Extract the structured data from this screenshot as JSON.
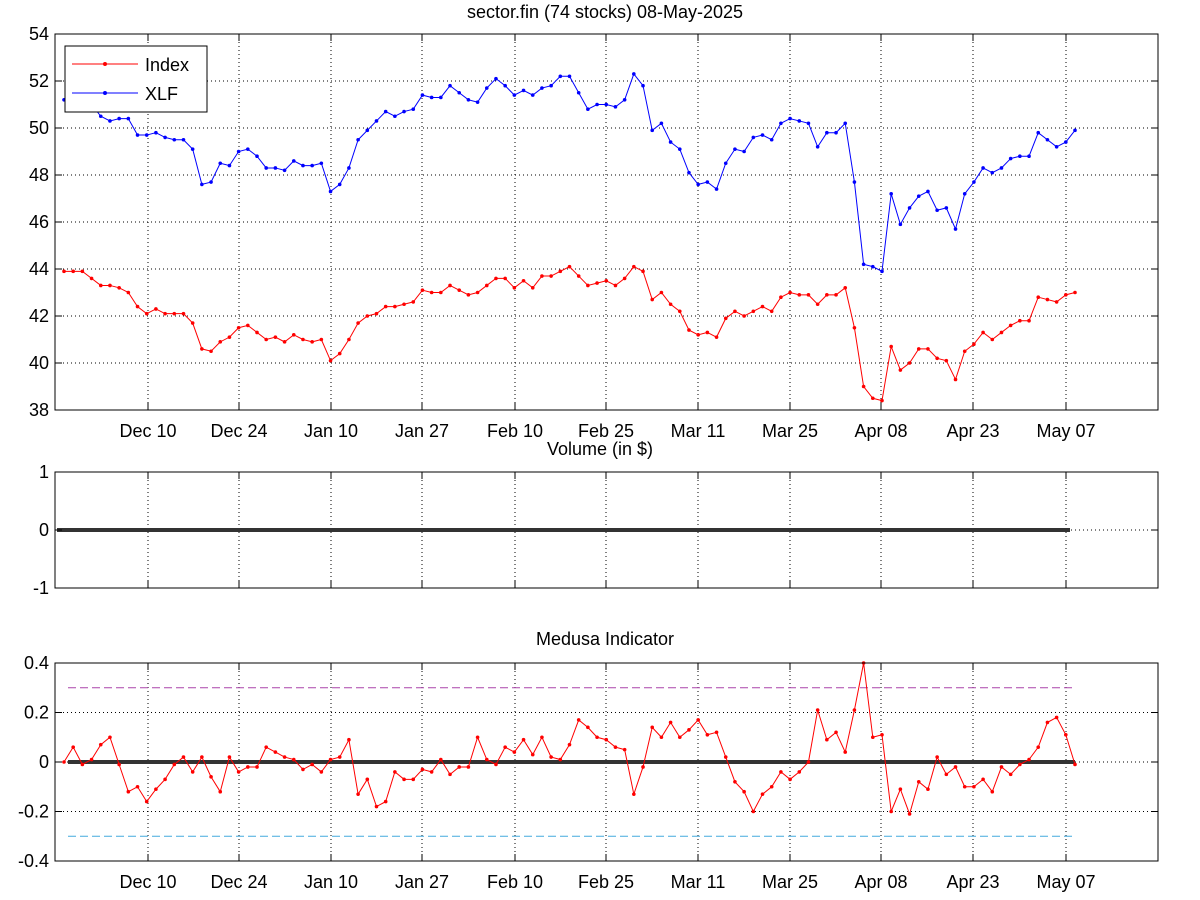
{
  "chart_data": [
    {
      "type": "line",
      "title": "sector.fin (74 stocks)   08-May-2025",
      "xlabel": "",
      "ylabel": "",
      "ylim": [
        38,
        54
      ],
      "yticks": [
        38,
        40,
        42,
        44,
        46,
        48,
        50,
        52,
        54
      ],
      "xticks": [
        "Dec 10",
        "Dec 24",
        "Jan 10",
        "Jan 27",
        "Feb 10",
        "Feb 25",
        "Mar 11",
        "Mar 25",
        "Apr 08",
        "Apr 23",
        "May 07"
      ],
      "grid": true,
      "legend": "top-left",
      "series": [
        {
          "name": "Index",
          "color": "#ff0000",
          "values": [
            43.9,
            43.9,
            43.9,
            43.6,
            43.3,
            43.3,
            43.2,
            43.0,
            42.4,
            42.1,
            42.3,
            42.1,
            42.1,
            42.1,
            41.7,
            40.6,
            40.5,
            40.9,
            41.1,
            41.5,
            41.6,
            41.3,
            41.0,
            41.1,
            40.9,
            41.2,
            41.0,
            40.9,
            41.0,
            40.1,
            40.4,
            41.0,
            41.7,
            42.0,
            42.1,
            42.4,
            42.4,
            42.5,
            42.6,
            43.1,
            43.0,
            43.0,
            43.3,
            43.1,
            42.9,
            43.0,
            43.3,
            43.6,
            43.6,
            43.2,
            43.5,
            43.2,
            43.7,
            43.7,
            43.9,
            44.1,
            43.7,
            43.3,
            43.4,
            43.5,
            43.3,
            43.6,
            44.1,
            43.9,
            42.7,
            43.0,
            42.5,
            42.2,
            41.4,
            41.2,
            41.3,
            41.1,
            41.9,
            42.2,
            42.0,
            42.2,
            42.4,
            42.2,
            42.8,
            43.0,
            42.9,
            42.9,
            42.5,
            42.9,
            42.9,
            43.2,
            41.5,
            39.0,
            38.5,
            38.4,
            40.7,
            39.7,
            40.0,
            40.6,
            40.6,
            40.2,
            40.1,
            39.3,
            40.5,
            40.8,
            41.3,
            41.0,
            41.3,
            41.6,
            41.8,
            41.8,
            42.8,
            42.7,
            42.6,
            42.9,
            43.0
          ]
        },
        {
          "name": "XLF",
          "color": "#0000ff",
          "values": [
            51.2,
            51.6,
            51.4,
            51.0,
            50.5,
            50.3,
            50.4,
            50.4,
            49.7,
            49.7,
            49.8,
            49.6,
            49.5,
            49.5,
            49.1,
            47.6,
            47.7,
            48.5,
            48.4,
            49.0,
            49.1,
            48.8,
            48.3,
            48.3,
            48.2,
            48.6,
            48.4,
            48.4,
            48.5,
            47.3,
            47.6,
            48.3,
            49.5,
            49.9,
            50.3,
            50.7,
            50.5,
            50.7,
            50.8,
            51.4,
            51.3,
            51.3,
            51.8,
            51.5,
            51.2,
            51.1,
            51.7,
            52.1,
            51.8,
            51.4,
            51.6,
            51.4,
            51.7,
            51.8,
            52.2,
            52.2,
            51.5,
            50.8,
            51.0,
            51.0,
            50.9,
            51.2,
            52.3,
            51.8,
            49.9,
            50.2,
            49.4,
            49.1,
            48.1,
            47.6,
            47.7,
            47.4,
            48.5,
            49.1,
            49.0,
            49.6,
            49.7,
            49.5,
            50.2,
            50.4,
            50.3,
            50.2,
            49.2,
            49.8,
            49.8,
            50.2,
            47.7,
            44.2,
            44.1,
            43.9,
            47.2,
            45.9,
            46.6,
            47.1,
            47.3,
            46.5,
            46.6,
            45.7,
            47.2,
            47.7,
            48.3,
            48.1,
            48.3,
            48.7,
            48.8,
            48.8,
            49.8,
            49.5,
            49.2,
            49.4,
            49.9
          ]
        }
      ]
    },
    {
      "type": "line",
      "title": "Volume (in $)",
      "ylim": [
        -1,
        1
      ],
      "yticks": [
        -1,
        0,
        1
      ],
      "grid": true,
      "series": [
        {
          "color": "#333333",
          "values": [
            0,
            0
          ]
        }
      ]
    },
    {
      "type": "line",
      "title": "Medusa Indicator",
      "ylim": [
        -0.4,
        0.4
      ],
      "yticks": [
        -0.4,
        -0.2,
        0,
        0.2,
        0.4
      ],
      "xticks": [
        "Dec 10",
        "Dec 24",
        "Jan 10",
        "Jan 27",
        "Feb 10",
        "Feb 25",
        "Mar 11",
        "Mar 25",
        "Apr 08",
        "Apr 23",
        "May 07"
      ],
      "grid": true,
      "reference_lines": [
        {
          "value": 0.3,
          "color": "#aa44aa"
        },
        {
          "value": -0.3,
          "color": "#44aadd"
        },
        {
          "value": 0,
          "color": "#333333"
        }
      ],
      "series": [
        {
          "color": "#ff0000",
          "values": [
            0.0,
            0.06,
            -0.01,
            0.01,
            0.07,
            0.1,
            -0.01,
            -0.12,
            -0.1,
            -0.16,
            -0.11,
            -0.07,
            -0.01,
            0.02,
            -0.04,
            0.02,
            -0.06,
            -0.12,
            0.02,
            -0.04,
            -0.02,
            -0.02,
            0.06,
            0.04,
            0.02,
            0.01,
            -0.03,
            -0.01,
            -0.04,
            0.01,
            0.02,
            0.09,
            -0.13,
            -0.07,
            -0.18,
            -0.16,
            -0.04,
            -0.07,
            -0.07,
            -0.03,
            -0.04,
            0.01,
            -0.05,
            -0.02,
            -0.02,
            0.1,
            0.01,
            -0.01,
            0.06,
            0.04,
            0.09,
            0.03,
            0.1,
            0.02,
            0.01,
            0.07,
            0.17,
            0.14,
            0.1,
            0.09,
            0.06,
            0.05,
            -0.13,
            -0.02,
            0.14,
            0.1,
            0.16,
            0.1,
            0.13,
            0.17,
            0.11,
            0.12,
            0.02,
            -0.08,
            -0.12,
            -0.2,
            -0.13,
            -0.1,
            -0.04,
            -0.07,
            -0.04,
            0.0,
            0.21,
            0.09,
            0.12,
            0.04,
            0.21,
            0.4,
            0.1,
            0.11,
            -0.2,
            -0.11,
            -0.21,
            -0.08,
            -0.11,
            0.02,
            -0.05,
            -0.02,
            -0.1,
            -0.1,
            -0.07,
            -0.12,
            -0.02,
            -0.05,
            -0.01,
            0.01,
            0.06,
            0.16,
            0.18,
            0.11,
            -0.01
          ]
        }
      ]
    }
  ]
}
